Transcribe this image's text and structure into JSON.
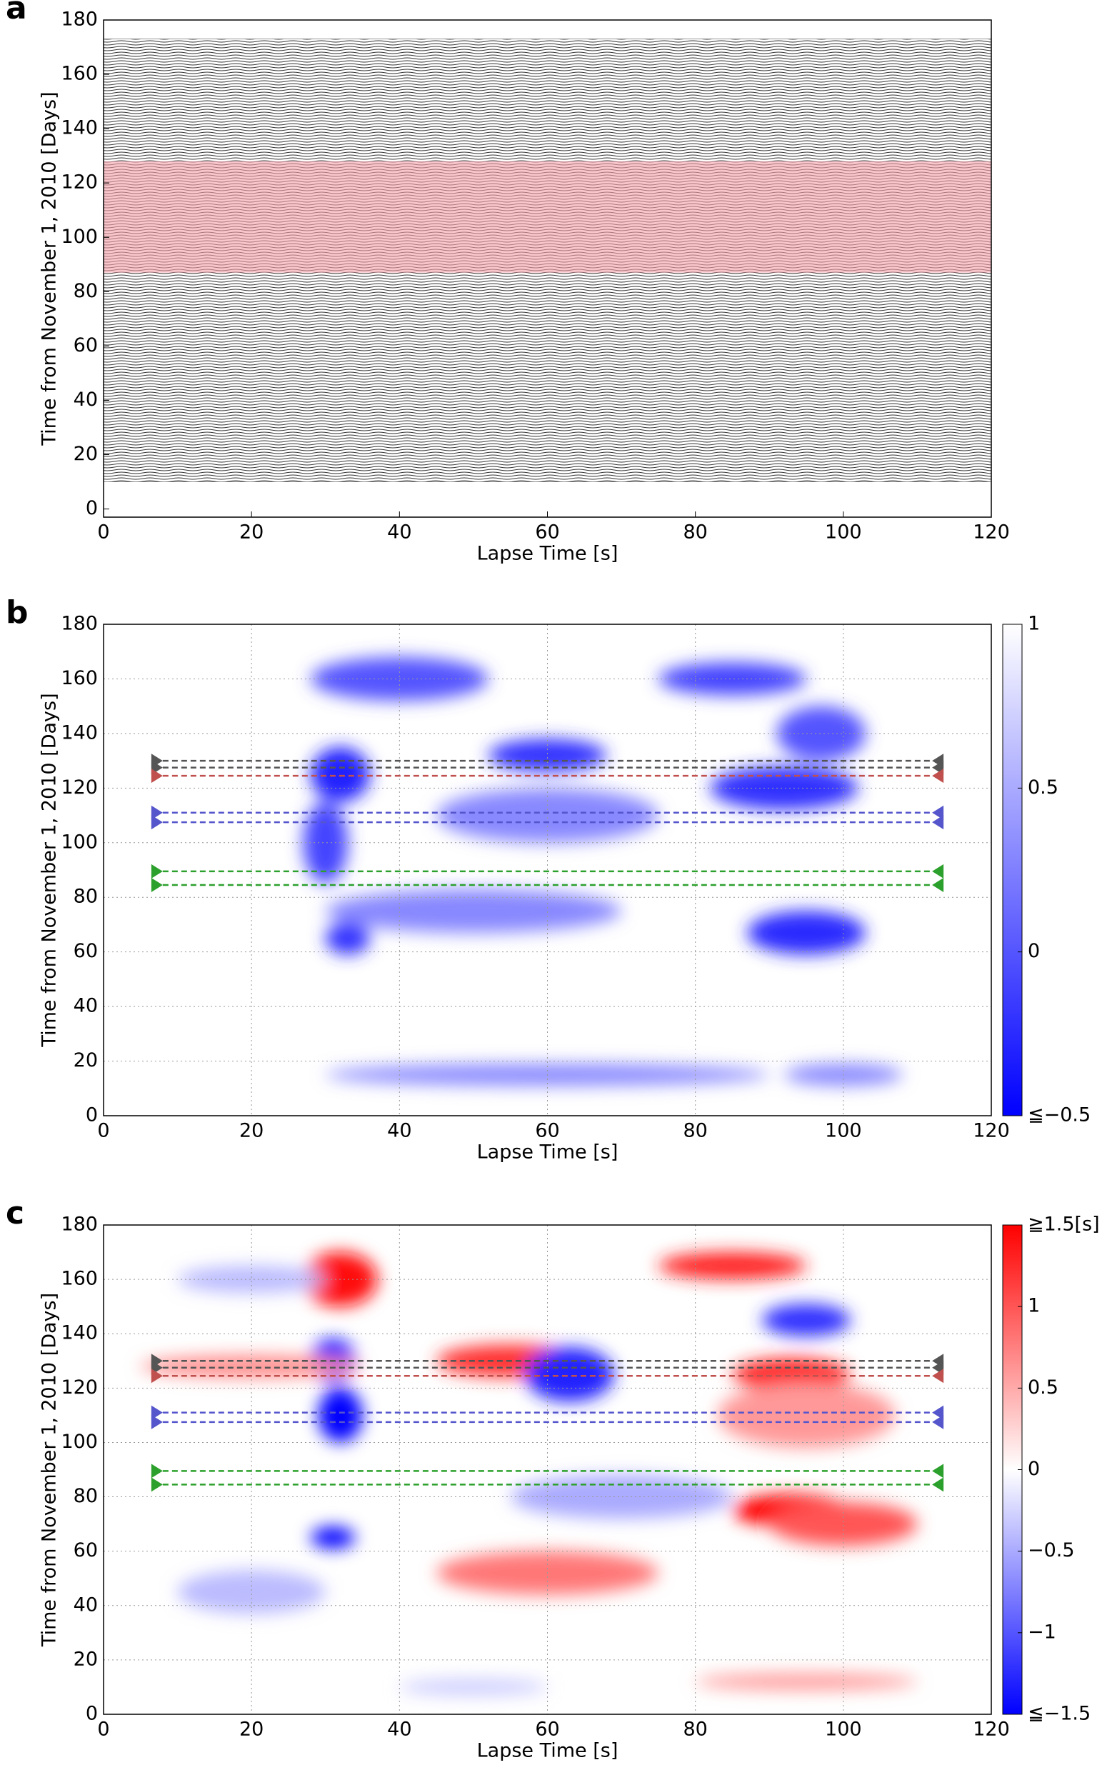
{
  "chart_data": [
    {
      "type": "waveform",
      "panel": "a",
      "xlabel": "Lapse Time [s]",
      "ylabel": "Time from November 1, 2010 [Days]",
      "xlim": [
        0,
        120
      ],
      "xticks": [
        0,
        20,
        40,
        60,
        80,
        100,
        120
      ],
      "ylim": [
        -3,
        180
      ],
      "yticks": [
        0,
        20,
        40,
        60,
        80,
        100,
        120,
        140,
        160,
        180
      ],
      "grid": false,
      "trace_range": [
        10,
        173
      ],
      "trace_color": "#333333",
      "highlight_range": [
        87,
        128
      ],
      "highlight_color": "#f4a0a8"
    },
    {
      "type": "heatmap",
      "panel": "b",
      "xlabel": "Lapse Time [s]",
      "ylabel": "Time from November 1, 2010 [Days]",
      "xlim": [
        0,
        120
      ],
      "xticks": [
        0,
        20,
        40,
        60,
        80,
        100,
        120
      ],
      "ylim": [
        0,
        180
      ],
      "yticks": [
        0,
        20,
        40,
        60,
        80,
        100,
        120,
        140,
        160,
        180
      ],
      "grid": true,
      "data_extent": [
        9.5,
        111,
        11,
        173
      ],
      "clim": [
        -0.5,
        1
      ],
      "colormap": [
        "#0000ff",
        "#ffffff"
      ],
      "cticks": [
        {
          "value": -0.5,
          "label": "≦−0.5"
        },
        0,
        0.5,
        1
      ],
      "blobs": [
        {
          "x": 32,
          "y": 125,
          "rx": 4,
          "ry": 10,
          "value": -0.3
        },
        {
          "x": 33,
          "y": 65,
          "rx": 3,
          "ry": 6,
          "value": -0.2
        },
        {
          "x": 30,
          "y": 100,
          "rx": 3,
          "ry": 15,
          "value": -0.1
        },
        {
          "x": 40,
          "y": 160,
          "rx": 12,
          "ry": 8,
          "value": 0
        },
        {
          "x": 60,
          "y": 132,
          "rx": 8,
          "ry": 6,
          "value": -0.2
        },
        {
          "x": 85,
          "y": 160,
          "rx": 10,
          "ry": 6,
          "value": -0.1
        },
        {
          "x": 92,
          "y": 120,
          "rx": 10,
          "ry": 8,
          "value": -0.2
        },
        {
          "x": 95,
          "y": 67,
          "rx": 8,
          "ry": 8,
          "value": -0.25
        },
        {
          "x": 97,
          "y": 140,
          "rx": 6,
          "ry": 10,
          "value": 0
        },
        {
          "x": 60,
          "y": 110,
          "rx": 15,
          "ry": 10,
          "value": 0.3
        },
        {
          "x": 50,
          "y": 75,
          "rx": 20,
          "ry": 8,
          "value": 0.3
        },
        {
          "x": 60,
          "y": 15,
          "rx": 30,
          "ry": 4,
          "value": 0.3
        },
        {
          "x": 100,
          "y": 15,
          "rx": 8,
          "ry": 4,
          "value": 0.3
        }
      ],
      "line_xrange": [
        8,
        112
      ],
      "reference_lines": [
        {
          "y": 130,
          "color": "#555555"
        },
        {
          "y": 127.5,
          "color": "#555555"
        },
        {
          "y": 124.5,
          "color": "#c0504d"
        },
        {
          "y": 111,
          "color": "#5555cc"
        },
        {
          "y": 107.5,
          "color": "#5555cc"
        },
        {
          "y": 89.5,
          "color": "#2ca02c"
        },
        {
          "y": 84.5,
          "color": "#2ca02c"
        }
      ]
    },
    {
      "type": "heatmap",
      "panel": "c",
      "xlabel": "Lapse Time [s]",
      "ylabel": "Time from November 1, 2010 [Days]",
      "xlim": [
        0,
        120
      ],
      "xticks": [
        0,
        20,
        40,
        60,
        80,
        100,
        120
      ],
      "ylim": [
        0,
        180
      ],
      "yticks": [
        0,
        20,
        40,
        60,
        80,
        100,
        120,
        140,
        160,
        180
      ],
      "grid": true,
      "data_extent": [
        9.5,
        111,
        11,
        173
      ],
      "clim": [
        -1.5,
        1.5
      ],
      "colormap": [
        "#0000ff",
        "#ffffff",
        "#ff0000"
      ],
      "cticks": [
        {
          "value": -1.5,
          "label": "≦−1.5"
        },
        {
          "value": -1,
          "label": "−1"
        },
        {
          "value": -0.5,
          "label": "−0.5"
        },
        0,
        0.5,
        1,
        {
          "value": 1.5,
          "label": "≧1.5[s]"
        }
      ],
      "blobs": [
        {
          "x": 32,
          "y": 160,
          "rx": 5,
          "ry": 10,
          "value": 1.4
        },
        {
          "x": 31,
          "y": 130,
          "rx": 3,
          "ry": 8,
          "value": -1.4
        },
        {
          "x": 32,
          "y": 110,
          "rx": 3,
          "ry": 10,
          "value": -1.5
        },
        {
          "x": 31,
          "y": 65,
          "rx": 3,
          "ry": 4,
          "value": -1.5
        },
        {
          "x": 55,
          "y": 130,
          "rx": 10,
          "ry": 6,
          "value": 1.2
        },
        {
          "x": 63,
          "y": 125,
          "rx": 6,
          "ry": 10,
          "value": -1.3
        },
        {
          "x": 85,
          "y": 165,
          "rx": 10,
          "ry": 5,
          "value": 1.3
        },
        {
          "x": 93,
          "y": 125,
          "rx": 8,
          "ry": 6,
          "value": 1.3
        },
        {
          "x": 95,
          "y": 145,
          "rx": 6,
          "ry": 6,
          "value": -1.2
        },
        {
          "x": 93,
          "y": 75,
          "rx": 8,
          "ry": 6,
          "value": 1.5
        },
        {
          "x": 100,
          "y": 70,
          "rx": 10,
          "ry": 8,
          "value": 1
        },
        {
          "x": 60,
          "y": 52,
          "rx": 15,
          "ry": 8,
          "value": 0.8
        },
        {
          "x": 20,
          "y": 160,
          "rx": 10,
          "ry": 5,
          "value": -0.4
        },
        {
          "x": 20,
          "y": 45,
          "rx": 10,
          "ry": 8,
          "value": -0.4
        },
        {
          "x": 70,
          "y": 80,
          "rx": 15,
          "ry": 8,
          "value": -0.5
        },
        {
          "x": 20,
          "y": 128,
          "rx": 15,
          "ry": 4,
          "value": 0.7
        },
        {
          "x": 95,
          "y": 110,
          "rx": 12,
          "ry": 12,
          "value": 0.6
        },
        {
          "x": 50,
          "y": 10,
          "rx": 10,
          "ry": 3,
          "value": -0.3
        },
        {
          "x": 95,
          "y": 12,
          "rx": 15,
          "ry": 3,
          "value": 0.6
        }
      ],
      "line_xrange": [
        8,
        112
      ],
      "reference_lines": [
        {
          "y": 130,
          "color": "#555555"
        },
        {
          "y": 127.5,
          "color": "#555555"
        },
        {
          "y": 124.5,
          "color": "#c0504d"
        },
        {
          "y": 111,
          "color": "#5555cc"
        },
        {
          "y": 107.5,
          "color": "#5555cc"
        },
        {
          "y": 89.5,
          "color": "#2ca02c"
        },
        {
          "y": 84.5,
          "color": "#2ca02c"
        }
      ]
    }
  ]
}
